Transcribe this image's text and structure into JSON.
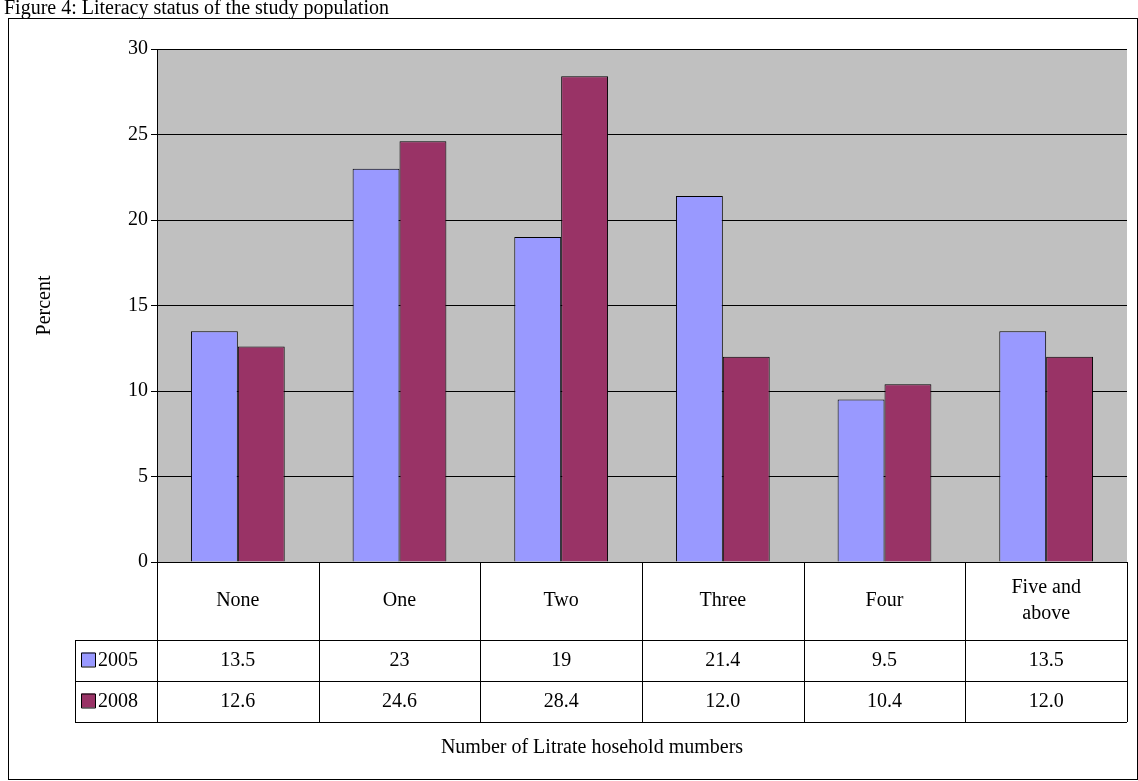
{
  "chart_data": {
    "type": "bar",
    "title": "Figure 4: Literacy status of the study population",
    "annotations": [
      "Number of Litrate hosehold mumbers"
    ],
    "ylabel": "Percent",
    "categories": [
      "None",
      "One",
      "Two",
      "Three",
      "Four",
      "Five and above"
    ],
    "series": [
      {
        "name": "2005",
        "color": "#9999ff",
        "values": [
          13.5,
          23,
          19,
          21.4,
          9.5,
          13.5
        ],
        "value_labels": [
          "13.5",
          "23",
          "19",
          "21.4",
          "9.5",
          "13.5"
        ]
      },
      {
        "name": "2008",
        "color": "#993366",
        "values": [
          12.6,
          24.6,
          28.4,
          12.0,
          10.4,
          12.0
        ],
        "value_labels": [
          "12.6",
          "24.6",
          "28.4",
          "12.0",
          "10.4",
          "12.0"
        ]
      }
    ],
    "ylim": [
      0,
      30
    ],
    "yticks": [
      0,
      5,
      10,
      15,
      20,
      25,
      30
    ],
    "grid": "y",
    "legend": "bottom left"
  }
}
